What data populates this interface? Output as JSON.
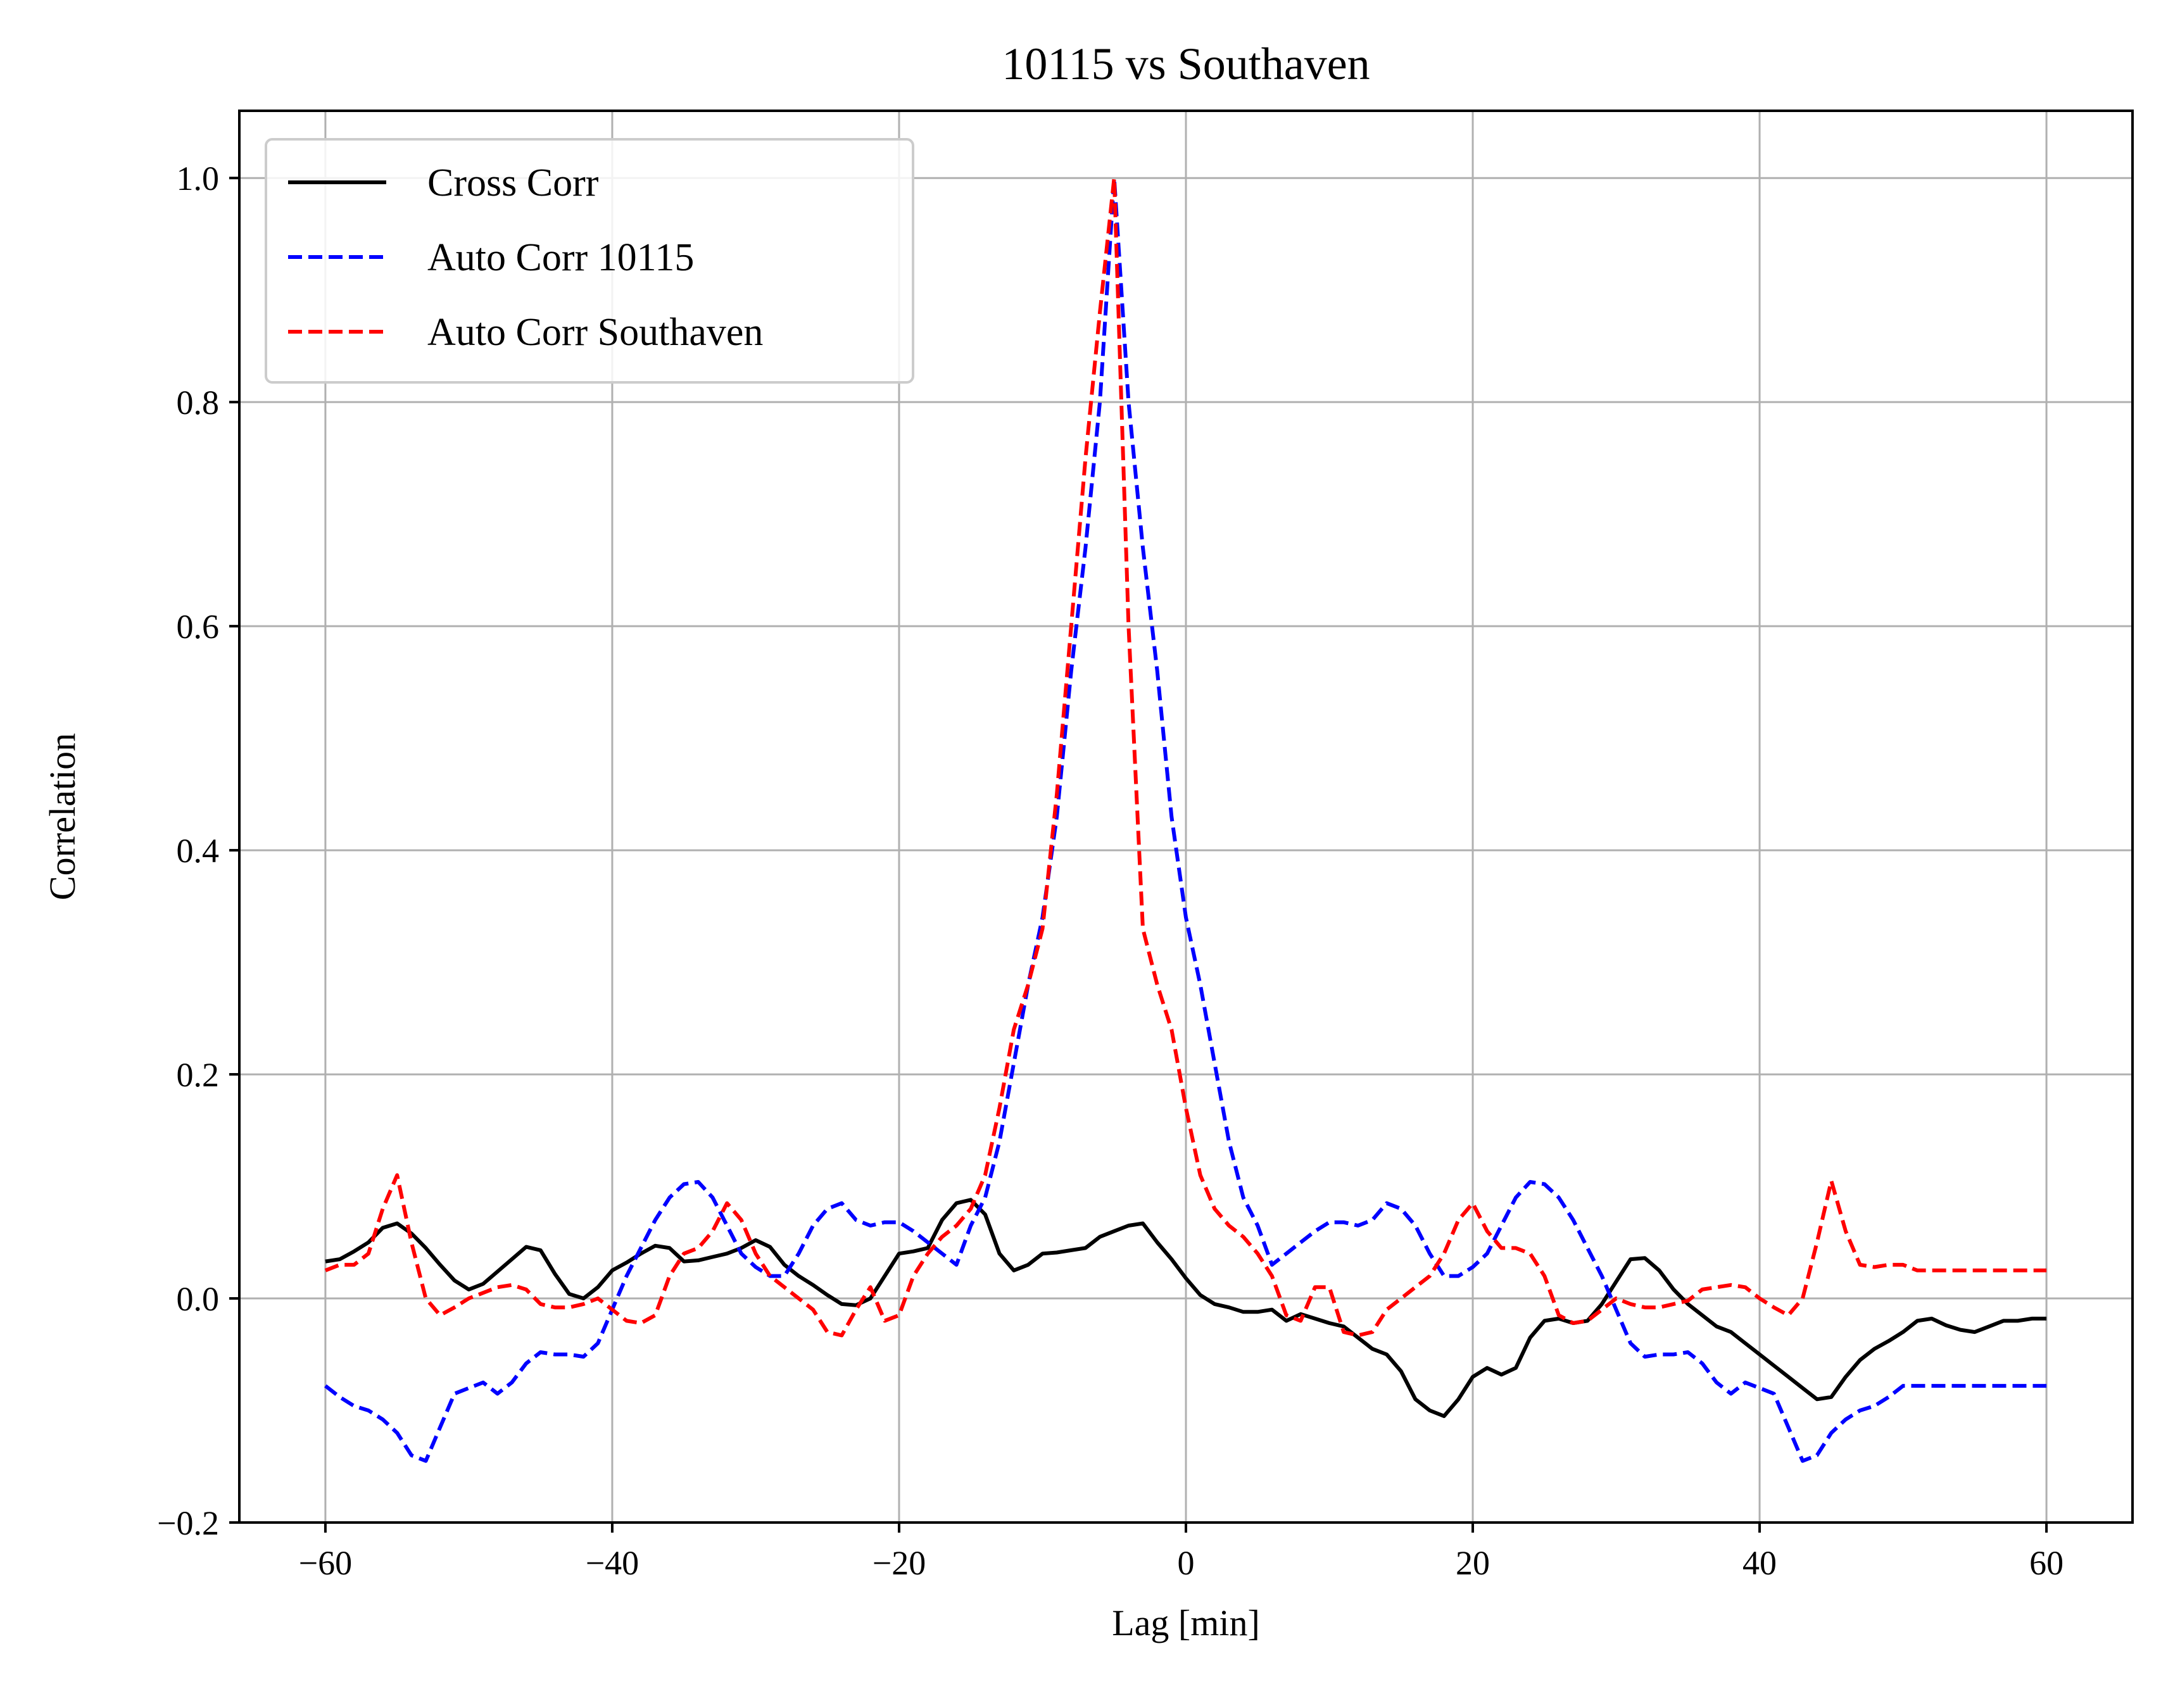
{
  "chart_data": {
    "type": "line",
    "title": "10115 vs Southaven",
    "xlabel": "Lag [min]",
    "ylabel": "Correlation",
    "xlim": [
      -66,
      66
    ],
    "ylim": [
      -0.2,
      1.06
    ],
    "xticks": [
      -60,
      -40,
      -20,
      0,
      20,
      40,
      60
    ],
    "xtick_labels": [
      "−60",
      "−40",
      "−20",
      "0",
      "20",
      "40",
      "60"
    ],
    "yticks": [
      -0.2,
      0.0,
      0.2,
      0.4,
      0.6,
      0.8,
      1.0
    ],
    "ytick_labels": [
      "−0.2",
      "0.0",
      "0.2",
      "0.4",
      "0.6",
      "0.8",
      "1.0"
    ],
    "grid": true,
    "legend_position": "top-left",
    "x_step": 1,
    "series": [
      {
        "name": "Cross Corr",
        "color": "#000000",
        "style": "solid",
        "values": [
          0.033,
          0.035,
          0.042,
          0.05,
          0.063,
          0.067,
          0.058,
          0.045,
          0.03,
          0.016,
          0.008,
          0.013,
          0.024,
          0.035,
          0.046,
          0.043,
          0.022,
          0.004,
          0.0,
          0.01,
          0.025,
          0.032,
          0.04,
          0.047,
          0.045,
          0.033,
          0.034,
          0.037,
          0.04,
          0.045,
          0.052,
          0.046,
          0.03,
          0.02,
          0.012,
          0.003,
          -0.005,
          -0.006,
          0.0,
          0.02,
          0.04,
          0.042,
          0.045,
          0.07,
          0.085,
          0.088,
          0.075,
          0.04,
          0.025,
          0.03,
          0.04,
          0.041,
          0.043,
          0.045,
          0.055,
          0.06,
          0.065,
          0.067,
          0.05,
          0.035,
          0.018,
          0.003,
          -0.005,
          -0.008,
          -0.012,
          -0.012,
          -0.01,
          -0.02,
          -0.014,
          -0.018,
          -0.022,
          -0.025,
          -0.035,
          -0.045,
          -0.05,
          -0.065,
          -0.09,
          -0.1,
          -0.105,
          -0.09,
          -0.07,
          -0.062,
          -0.068,
          -0.062,
          -0.035,
          -0.02,
          -0.018,
          -0.022,
          -0.02,
          -0.005,
          0.015,
          0.035,
          0.036,
          0.025,
          0.008,
          -0.005,
          -0.015,
          -0.025,
          -0.03,
          -0.04,
          -0.05,
          -0.06,
          -0.07,
          -0.08,
          -0.09,
          -0.088,
          -0.07,
          -0.055,
          -0.045,
          -0.038,
          -0.03,
          -0.02,
          -0.018,
          -0.024,
          -0.028,
          -0.03,
          -0.025,
          -0.02,
          -0.02,
          -0.018,
          -0.018
        ]
      },
      {
        "name": "Auto Corr 10115",
        "color": "#0000ff",
        "style": "dashed",
        "values": [
          -0.078,
          -0.088,
          -0.096,
          -0.1,
          -0.108,
          -0.12,
          -0.14,
          -0.145,
          -0.115,
          -0.085,
          -0.08,
          -0.075,
          -0.085,
          -0.075,
          -0.058,
          -0.048,
          -0.05,
          -0.05,
          -0.052,
          -0.04,
          -0.01,
          0.02,
          0.045,
          0.07,
          0.09,
          0.102,
          0.104,
          0.09,
          0.065,
          0.04,
          0.028,
          0.02,
          0.02,
          0.04,
          0.065,
          0.08,
          0.085,
          0.07,
          0.065,
          0.068,
          0.068,
          0.06,
          0.05,
          0.04,
          0.03,
          0.065,
          0.09,
          0.14,
          0.21,
          0.28,
          0.34,
          0.43,
          0.56,
          0.67,
          0.8,
          1.0,
          0.8,
          0.67,
          0.56,
          0.43,
          0.34,
          0.28,
          0.21,
          0.14,
          0.09,
          0.065,
          0.03,
          0.04,
          0.05,
          0.06,
          0.068,
          0.068,
          0.065,
          0.07,
          0.085,
          0.08,
          0.065,
          0.04,
          0.02,
          0.02,
          0.028,
          0.04,
          0.065,
          0.09,
          0.104,
          0.102,
          0.09,
          0.07,
          0.045,
          0.02,
          -0.01,
          -0.04,
          -0.052,
          -0.05,
          -0.05,
          -0.048,
          -0.058,
          -0.075,
          -0.085,
          -0.075,
          -0.08,
          -0.085,
          -0.115,
          -0.145,
          -0.14,
          -0.12,
          -0.108,
          -0.1,
          -0.096,
          -0.088,
          -0.078,
          -0.078,
          -0.078,
          -0.078,
          -0.078,
          -0.078,
          -0.078,
          -0.078,
          -0.078,
          -0.078,
          -0.078
        ]
      },
      {
        "name": "Auto Corr Southaven",
        "color": "#ff0000",
        "style": "dashed",
        "values": [
          0.025,
          0.03,
          0.03,
          0.04,
          0.08,
          0.11,
          0.05,
          0.0,
          -0.015,
          -0.008,
          0.0,
          0.005,
          0.01,
          0.012,
          0.008,
          -0.005,
          -0.008,
          -0.008,
          -0.005,
          0.0,
          -0.01,
          -0.02,
          -0.022,
          -0.015,
          0.02,
          0.04,
          0.045,
          0.06,
          0.085,
          0.07,
          0.04,
          0.02,
          0.01,
          0.0,
          -0.01,
          -0.03,
          -0.033,
          -0.01,
          0.01,
          -0.02,
          -0.015,
          0.02,
          0.04,
          0.055,
          0.065,
          0.08,
          0.11,
          0.17,
          0.24,
          0.28,
          0.33,
          0.45,
          0.6,
          0.75,
          0.88,
          1.0,
          0.6,
          0.33,
          0.28,
          0.24,
          0.17,
          0.11,
          0.08,
          0.065,
          0.055,
          0.04,
          0.02,
          -0.015,
          -0.02,
          0.01,
          0.01,
          -0.03,
          -0.033,
          -0.03,
          -0.01,
          0.0,
          0.01,
          0.02,
          0.04,
          0.07,
          0.085,
          0.06,
          0.045,
          0.045,
          0.04,
          0.02,
          -0.015,
          -0.022,
          -0.02,
          -0.01,
          0.0,
          -0.005,
          -0.008,
          -0.008,
          -0.005,
          -0.002,
          0.008,
          0.01,
          0.012,
          0.01,
          0.0,
          -0.008,
          -0.015,
          0.0,
          0.05,
          0.105,
          0.06,
          0.03,
          0.028,
          0.03,
          0.03,
          0.025,
          0.025,
          0.025,
          0.025,
          0.025,
          0.025,
          0.025,
          0.025,
          0.025,
          0.025
        ]
      }
    ]
  }
}
